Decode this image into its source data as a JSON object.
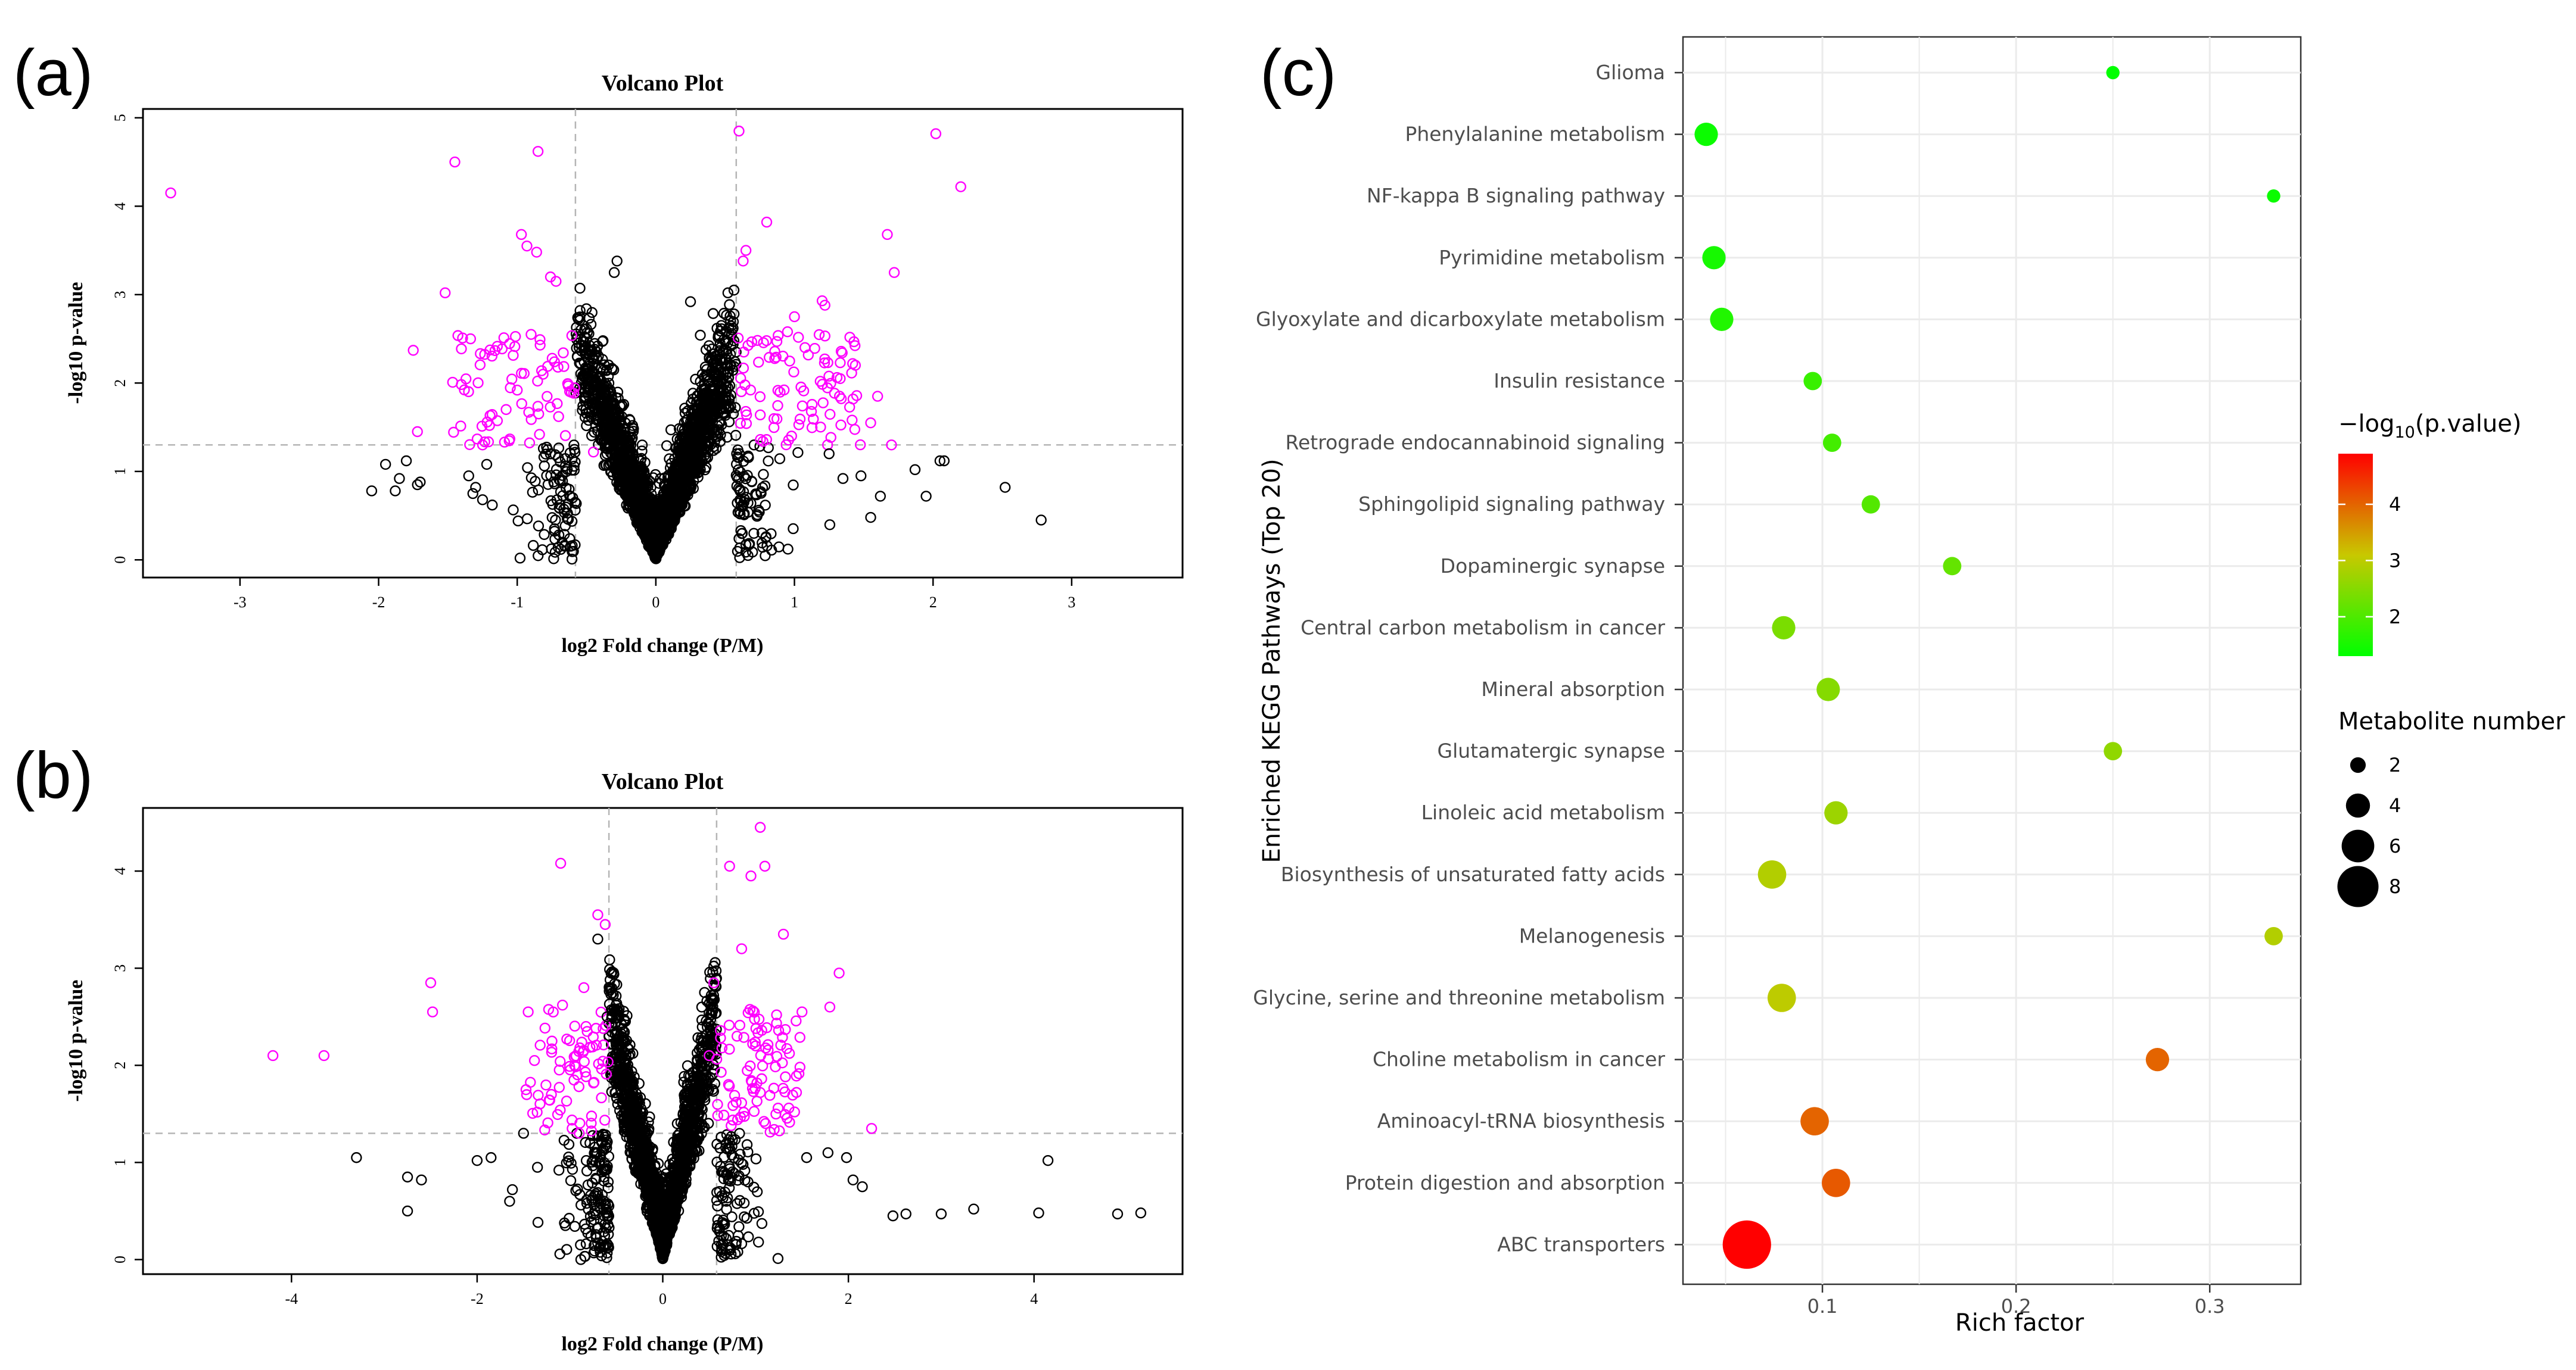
{
  "panels": {
    "a": "(a)",
    "b": "(b)",
    "c": "(c)"
  },
  "chart_data": [
    {
      "id": "a",
      "type": "scatter",
      "title": "Volcano Plot",
      "xlabel": "log2 Fold change (P/M)",
      "ylabel": "-log10 p-value",
      "xlim": [
        -3.7,
        3.8
      ],
      "ylim": [
        -0.2,
        5.1
      ],
      "xticks": [
        -3,
        -2,
        -1,
        0,
        1,
        2,
        3
      ],
      "yticks": [
        0,
        1,
        2,
        3,
        4,
        5
      ],
      "fc_threshold": 0.58,
      "p_threshold": 1.3,
      "colors": {
        "sig": "#ff00ff",
        "ns": "#000000"
      },
      "significant_points": [
        [
          -3.5,
          4.15
        ],
        [
          -1.45,
          4.5
        ],
        [
          -0.85,
          4.62
        ],
        [
          0.6,
          4.85
        ],
        [
          2.02,
          4.82
        ],
        [
          2.2,
          4.22
        ],
        [
          0.8,
          3.82
        ],
        [
          1.67,
          3.68
        ],
        [
          1.72,
          3.25
        ],
        [
          -0.97,
          3.68
        ],
        [
          -0.93,
          3.55
        ],
        [
          -0.86,
          3.48
        ],
        [
          -0.76,
          3.2
        ],
        [
          -0.72,
          3.15
        ],
        [
          -1.52,
          3.02
        ],
        [
          0.63,
          3.38
        ],
        [
          0.65,
          3.5
        ],
        [
          1.2,
          2.93
        ],
        [
          1.22,
          2.88
        ],
        [
          -1.75,
          2.37
        ],
        [
          -1.72,
          1.45
        ],
        [
          -1.2,
          1.52
        ],
        [
          -1.08,
          1.7
        ],
        [
          1.6,
          1.85
        ],
        [
          1.7,
          1.3
        ],
        [
          1.42,
          2.22
        ],
        [
          1.33,
          2.05
        ],
        [
          1.0,
          2.75
        ],
        [
          0.95,
          2.58
        ],
        [
          1.55,
          1.55
        ],
        [
          -0.9,
          2.55
        ],
        [
          -1.0,
          1.92
        ],
        [
          -1.25,
          1.3
        ],
        [
          -0.45,
          1.22
        ]
      ],
      "ns_points": [
        [
          -2.05,
          0.78
        ],
        [
          -1.95,
          1.08
        ],
        [
          -1.88,
          0.78
        ],
        [
          -1.85,
          0.92
        ],
        [
          -1.8,
          1.12
        ],
        [
          -1.72,
          0.85
        ],
        [
          -1.7,
          0.88
        ],
        [
          -1.35,
          0.95
        ],
        [
          -1.32,
          0.75
        ],
        [
          -1.3,
          0.82
        ],
        [
          -1.25,
          0.68
        ],
        [
          -1.22,
          1.08
        ],
        [
          -1.18,
          0.62
        ],
        [
          2.05,
          1.12
        ],
        [
          2.08,
          1.12
        ],
        [
          2.52,
          0.82
        ],
        [
          2.78,
          0.45
        ],
        [
          1.95,
          0.72
        ],
        [
          1.87,
          1.02
        ],
        [
          1.62,
          0.72
        ],
        [
          1.55,
          0.48
        ],
        [
          1.48,
          0.95
        ],
        [
          1.35,
          0.92
        ],
        [
          1.25,
          1.2
        ],
        [
          -0.28,
          3.38
        ],
        [
          -0.3,
          3.25
        ],
        [
          0.25,
          2.92
        ],
        [
          0.55,
          2.6
        ],
        [
          0.52,
          3.02
        ]
      ]
    },
    {
      "id": "b",
      "type": "scatter",
      "title": "Volcano Plot",
      "xlabel": "log2 Fold change (P/M)",
      "ylabel": "-log10 p-value",
      "xlim": [
        -5.6,
        5.6
      ],
      "ylim": [
        -0.15,
        4.65
      ],
      "xticks": [
        -4,
        -2,
        0,
        2,
        4
      ],
      "yticks": [
        0,
        1,
        2,
        3,
        4
      ],
      "fc_threshold": 0.58,
      "p_threshold": 1.3,
      "colors": {
        "sig": "#ff00ff",
        "ns": "#000000"
      },
      "significant_points": [
        [
          1.05,
          4.45
        ],
        [
          0.72,
          4.05
        ],
        [
          1.1,
          4.05
        ],
        [
          0.95,
          3.95
        ],
        [
          -1.1,
          4.08
        ],
        [
          -0.7,
          3.55
        ],
        [
          -0.62,
          3.45
        ],
        [
          1.3,
          3.35
        ],
        [
          0.85,
          3.2
        ],
        [
          1.9,
          2.95
        ],
        [
          0.55,
          2.85
        ],
        [
          -2.5,
          2.85
        ],
        [
          -2.48,
          2.55
        ],
        [
          -1.45,
          2.55
        ],
        [
          -1.08,
          2.62
        ],
        [
          1.8,
          2.6
        ],
        [
          1.5,
          2.55
        ],
        [
          -4.2,
          2.1
        ],
        [
          -3.65,
          2.1
        ],
        [
          2.25,
          1.35
        ],
        [
          1.42,
          1.52
        ],
        [
          -0.95,
          2.0
        ],
        [
          1.0,
          2.2
        ],
        [
          0.8,
          2.3
        ],
        [
          -1.2,
          1.7
        ],
        [
          1.05,
          1.72
        ],
        [
          -0.85,
          2.8
        ],
        [
          0.5,
          2.1
        ]
      ],
      "ns_points": [
        [
          -3.3,
          1.05
        ],
        [
          -2.75,
          0.85
        ],
        [
          -2.6,
          0.82
        ],
        [
          -2.75,
          0.5
        ],
        [
          -2.0,
          1.02
        ],
        [
          -1.85,
          1.05
        ],
        [
          -1.62,
          0.72
        ],
        [
          -1.65,
          0.6
        ],
        [
          -1.5,
          1.3
        ],
        [
          -1.35,
          0.95
        ],
        [
          4.15,
          1.02
        ],
        [
          4.05,
          0.48
        ],
        [
          3.35,
          0.52
        ],
        [
          3.0,
          0.47
        ],
        [
          2.62,
          0.47
        ],
        [
          2.48,
          0.45
        ],
        [
          2.15,
          0.75
        ],
        [
          2.05,
          0.82
        ],
        [
          1.98,
          1.05
        ],
        [
          1.78,
          1.1
        ],
        [
          1.55,
          1.05
        ],
        [
          4.9,
          0.47
        ],
        [
          5.15,
          0.48
        ],
        [
          -0.6,
          2.5
        ],
        [
          -0.7,
          3.3
        ],
        [
          0.42,
          2.6
        ],
        [
          0.45,
          2.75
        ]
      ]
    },
    {
      "id": "c",
      "type": "scatter",
      "title": "",
      "xlabel": "Rich factor",
      "ylabel": "Enriched KEGG Pathways (Top 20)",
      "xlim": [
        0.028,
        0.347
      ],
      "xticks": [
        0.1,
        0.2,
        0.3
      ],
      "xticklabels": [
        "0.1",
        "0.2",
        "0.3"
      ],
      "color_legend": {
        "title_prefix": "−log",
        "title_sub": "10",
        "title_suffix": "(p.value)",
        "min": 1.3,
        "max": 4.9,
        "ticks": [
          2,
          3,
          4
        ],
        "low_color": "#00ff00",
        "high_color": "#ff0000"
      },
      "size_legend": {
        "title": "Metabolite number",
        "values": [
          2,
          4,
          6,
          8
        ]
      },
      "points": [
        {
          "pathway": "Glioma",
          "rich_factor": 0.25,
          "neglog10p": 1.3,
          "count": 1
        },
        {
          "pathway": "Phenylalanine metabolism",
          "rich_factor": 0.04,
          "neglog10p": 1.4,
          "count": 3
        },
        {
          "pathway": "NF-kappa B signaling pathway",
          "rich_factor": 0.333,
          "neglog10p": 1.4,
          "count": 1
        },
        {
          "pathway": "Pyrimidine metabolism",
          "rich_factor": 0.044,
          "neglog10p": 1.5,
          "count": 3
        },
        {
          "pathway": "Glyoxylate and dicarboxylate metabolism",
          "rich_factor": 0.048,
          "neglog10p": 1.6,
          "count": 3
        },
        {
          "pathway": "Insulin resistance",
          "rich_factor": 0.095,
          "neglog10p": 1.8,
          "count": 2
        },
        {
          "pathway": "Retrograde endocannabinoid signaling",
          "rich_factor": 0.105,
          "neglog10p": 1.9,
          "count": 2
        },
        {
          "pathway": "Sphingolipid signaling pathway",
          "rich_factor": 0.125,
          "neglog10p": 2.05,
          "count": 2
        },
        {
          "pathway": "Dopaminergic synapse",
          "rich_factor": 0.167,
          "neglog10p": 2.2,
          "count": 2
        },
        {
          "pathway": "Central carbon metabolism in cancer",
          "rich_factor": 0.08,
          "neglog10p": 2.4,
          "count": 3
        },
        {
          "pathway": "Mineral absorption",
          "rich_factor": 0.103,
          "neglog10p": 2.5,
          "count": 3
        },
        {
          "pathway": "Glutamatergic synapse",
          "rich_factor": 0.25,
          "neglog10p": 2.6,
          "count": 2
        },
        {
          "pathway": "Linoleic acid metabolism",
          "rich_factor": 0.107,
          "neglog10p": 2.7,
          "count": 3
        },
        {
          "pathway": "Biosynthesis of unsaturated fatty acids",
          "rich_factor": 0.074,
          "neglog10p": 2.9,
          "count": 4
        },
        {
          "pathway": "Melanogenesis",
          "rich_factor": 0.333,
          "neglog10p": 2.9,
          "count": 2
        },
        {
          "pathway": "Glycine, serine and threonine metabolism",
          "rich_factor": 0.079,
          "neglog10p": 3.0,
          "count": 4
        },
        {
          "pathway": "Choline metabolism in cancer",
          "rich_factor": 0.273,
          "neglog10p": 4.0,
          "count": 3
        },
        {
          "pathway": "Aminoacyl-tRNA biosynthesis",
          "rich_factor": 0.096,
          "neglog10p": 4.0,
          "count": 4
        },
        {
          "pathway": "Protein digestion and absorption",
          "rich_factor": 0.107,
          "neglog10p": 4.1,
          "count": 4
        },
        {
          "pathway": "ABC transporters",
          "rich_factor": 0.061,
          "neglog10p": 4.9,
          "count": 8
        }
      ]
    }
  ]
}
